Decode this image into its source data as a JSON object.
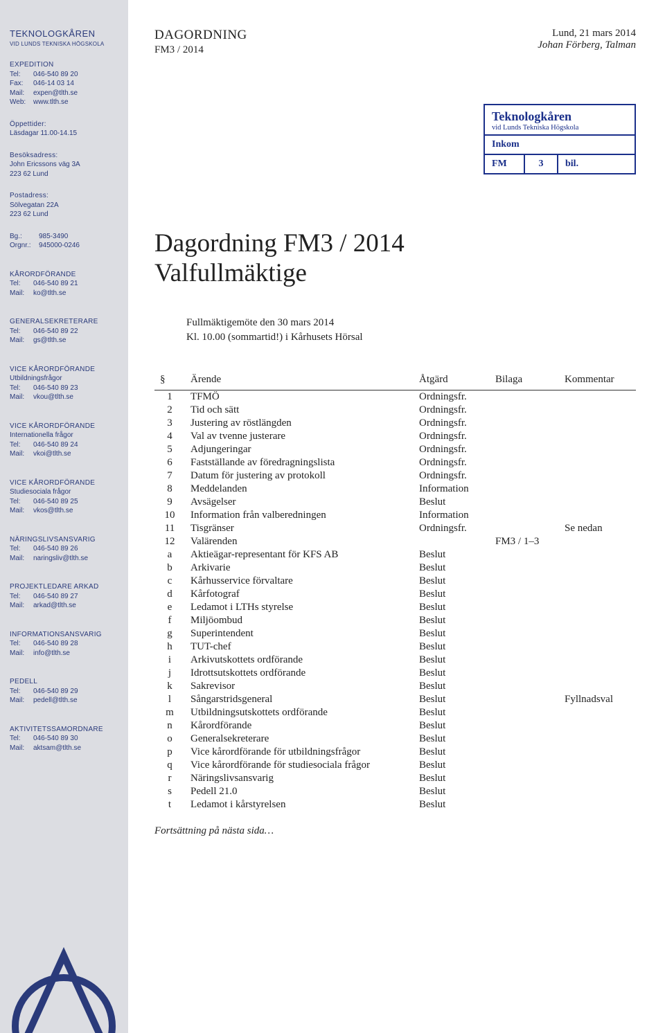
{
  "sidebar": {
    "logo_text": "TEKNOLOGKÅREN",
    "logo_sub": "VID LUNDS TEKNISKA HÖGSKOLA",
    "expedition": {
      "heading": "EXPEDITION",
      "tel_label": "Tel:",
      "tel": "046-540 89 20",
      "fax_label": "Fax:",
      "fax": "046-14 03 14",
      "mail_label": "Mail:",
      "mail": "expen@tlth.se",
      "web_label": "Web:",
      "web": "www.tlth.se"
    },
    "oppettider": {
      "heading": "Öppettider:",
      "text": "Läsdagar 11.00-14.15"
    },
    "besoksadress": {
      "heading": "Besöksadress:",
      "line1": "John Ericssons väg 3A",
      "line2": "223 62 Lund"
    },
    "postadress": {
      "heading": "Postadress:",
      "line1": "Sölvegatan 22A",
      "line2": "223 62 Lund"
    },
    "bg": {
      "label": "Bg.:",
      "value": "985-3490"
    },
    "orgnr": {
      "label": "Orgnr.:",
      "value": "945000-0246"
    },
    "contacts": [
      {
        "heading": "KÅRORDFÖRANDE",
        "sub": "",
        "tel": "046-540 89 21",
        "mail": "ko@tlth.se"
      },
      {
        "heading": "GENERALSEKRETERARE",
        "sub": "",
        "tel": "046-540 89 22",
        "mail": "gs@tlth.se"
      },
      {
        "heading": "VICE KÅRORDFÖRANDE",
        "sub": "Utbildningsfrågor",
        "tel": "046-540 89 23",
        "mail": "vkou@tlth.se"
      },
      {
        "heading": "VICE KÅRORDFÖRANDE",
        "sub": "Internationella frågor",
        "tel": "046-540 89 24",
        "mail": "vkoi@tlth.se"
      },
      {
        "heading": "VICE KÅRORDFÖRANDE",
        "sub": "Studiesociala frågor",
        "tel": "046-540 89 25",
        "mail": "vkos@tlth.se"
      },
      {
        "heading": "NÄRINGSLIVSANSVARIG",
        "sub": "",
        "tel": "046-540 89 26",
        "mail": "naringsliv@tlth.se"
      },
      {
        "heading": "PROJEKTLEDARE ARKAD",
        "sub": "",
        "tel": "046-540 89 27",
        "mail": "arkad@tlth.se"
      },
      {
        "heading": "INFORMATIONSANSVARIG",
        "sub": "",
        "tel": "046-540 89 28",
        "mail": "info@tlth.se"
      },
      {
        "heading": "PEDELL",
        "sub": "",
        "tel": "046-540 89 29",
        "mail": "pedell@tlth.se"
      },
      {
        "heading": "AKTIVITETSSAMORDNARE",
        "sub": "",
        "tel": "046-540 89 30",
        "mail": "aktsam@tlth.se"
      }
    ],
    "tel_lbl": "Tel:",
    "mail_lbl": "Mail:"
  },
  "header": {
    "doc_type": "DAGORDNING",
    "doc_ref": "FM3 / 2014",
    "location_date": "Lund, 21 mars 2014",
    "author": "Johan Förberg, Talman"
  },
  "stamp": {
    "title": "Teknologkåren",
    "sub": "vid Lunds Tekniska Högskola",
    "row2": "Inkom",
    "fm": "FM",
    "num": "3",
    "bil": "bil."
  },
  "main_title_l1": "Dagordning FM3 / 2014",
  "main_title_l2": "Valfullmäktige",
  "meeting": {
    "line1": "Fullmäktigemöte den 30 mars 2014",
    "line2": "Kl. 10.00 (sommartid!) i Kårhusets Hörsal"
  },
  "table": {
    "headers": {
      "num": "§",
      "arende": "Ärende",
      "atgard": "Åtgärd",
      "bilaga": "Bilaga",
      "kommentar": "Kommentar"
    },
    "rows": [
      {
        "n": "1",
        "a": "TFMÖ",
        "t": "Ordningsfr.",
        "b": "",
        "k": ""
      },
      {
        "n": "2",
        "a": "Tid och sätt",
        "t": "Ordningsfr.",
        "b": "",
        "k": ""
      },
      {
        "n": "3",
        "a": "Justering av röstlängden",
        "t": "Ordningsfr.",
        "b": "",
        "k": ""
      },
      {
        "n": "4",
        "a": "Val av tvenne justerare",
        "t": "Ordningsfr.",
        "b": "",
        "k": ""
      },
      {
        "n": "5",
        "a": "Adjungeringar",
        "t": "Ordningsfr.",
        "b": "",
        "k": ""
      },
      {
        "n": "6",
        "a": "Fastställande av föredragningslista",
        "t": "Ordningsfr.",
        "b": "",
        "k": ""
      },
      {
        "n": "7",
        "a": "Datum för justering av protokoll",
        "t": "Ordningsfr.",
        "b": "",
        "k": ""
      },
      {
        "n": "8",
        "a": "Meddelanden",
        "t": "Information",
        "b": "",
        "k": ""
      },
      {
        "n": "9",
        "a": "Avsägelser",
        "t": "Beslut",
        "b": "",
        "k": ""
      },
      {
        "n": "10",
        "a": "Information från valberedningen",
        "t": "Information",
        "b": "",
        "k": ""
      },
      {
        "n": "11",
        "a": "Tisgränser",
        "t": "Ordningsfr.",
        "b": "",
        "k": "Se nedan"
      },
      {
        "n": "12",
        "a": "Valärenden",
        "t": "",
        "b": "FM3 / 1–3",
        "k": ""
      },
      {
        "n": "a",
        "a": "Aktieägar-representant för KFS AB",
        "t": "Beslut",
        "b": "",
        "k": ""
      },
      {
        "n": "b",
        "a": "Arkivarie",
        "t": "Beslut",
        "b": "",
        "k": ""
      },
      {
        "n": "c",
        "a": "Kårhusservice förvaltare",
        "t": "Beslut",
        "b": "",
        "k": ""
      },
      {
        "n": "d",
        "a": "Kårfotograf",
        "t": "Beslut",
        "b": "",
        "k": ""
      },
      {
        "n": "e",
        "a": "Ledamot i LTHs styrelse",
        "t": "Beslut",
        "b": "",
        "k": ""
      },
      {
        "n": "f",
        "a": "Miljöombud",
        "t": "Beslut",
        "b": "",
        "k": ""
      },
      {
        "n": "g",
        "a": "Superintendent",
        "t": "Beslut",
        "b": "",
        "k": ""
      },
      {
        "n": "h",
        "a": "TUT-chef",
        "t": "Beslut",
        "b": "",
        "k": ""
      },
      {
        "n": "i",
        "a": "Arkivutskottets ordförande",
        "t": "Beslut",
        "b": "",
        "k": ""
      },
      {
        "n": "j",
        "a": "Idrottsutskottets ordförande",
        "t": "Beslut",
        "b": "",
        "k": ""
      },
      {
        "n": "k",
        "a": "Sakrevisor",
        "t": "Beslut",
        "b": "",
        "k": ""
      },
      {
        "n": "l",
        "a": "Sångarstridsgeneral",
        "t": "Beslut",
        "b": "",
        "k": "Fyllnadsval"
      },
      {
        "n": "m",
        "a": "Utbildningsutskottets ordförande",
        "t": "Beslut",
        "b": "",
        "k": ""
      },
      {
        "n": "n",
        "a": "Kårordförande",
        "t": "Beslut",
        "b": "",
        "k": ""
      },
      {
        "n": "o",
        "a": "Generalsekreterare",
        "t": "Beslut",
        "b": "",
        "k": ""
      },
      {
        "n": "p",
        "a": "Vice kårordförande för utbildningsfrågor",
        "t": "Beslut",
        "b": "",
        "k": ""
      },
      {
        "n": "q",
        "a": "Vice kårordförande för studiesociala frågor",
        "t": "Beslut",
        "b": "",
        "k": ""
      },
      {
        "n": "r",
        "a": "Näringslivsansvarig",
        "t": "Beslut",
        "b": "",
        "k": ""
      },
      {
        "n": "s",
        "a": "Pedell 21.0",
        "t": "Beslut",
        "b": "",
        "k": ""
      },
      {
        "n": "t",
        "a": "Ledamot i kårstyrelsen",
        "t": "Beslut",
        "b": "",
        "k": ""
      }
    ]
  },
  "continuation": "Fortsättning på nästa sida…",
  "colors": {
    "sidebar_bg": "#dcdde2",
    "sidebar_text": "#2a3a7a",
    "stamp_border": "#1a2f8a"
  }
}
